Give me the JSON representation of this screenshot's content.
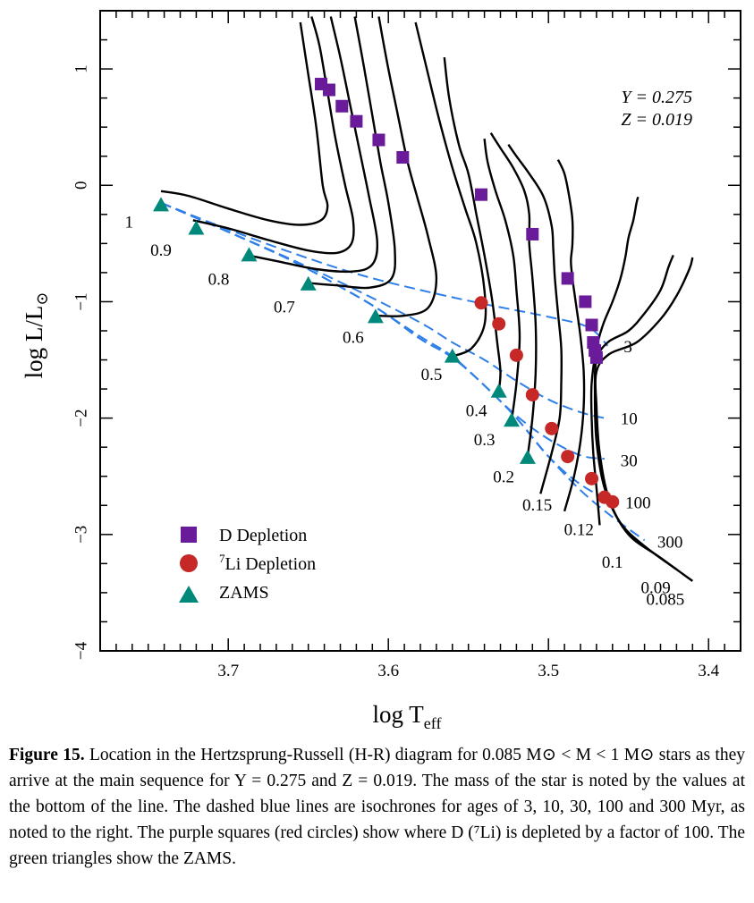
{
  "chart_data": {
    "type": "line",
    "xlabel": "log T",
    "xlabel_sub": "eff",
    "ylabel": "log L/L",
    "ylabel_sym": "⊙",
    "xlim": [
      3.78,
      3.38
    ],
    "ylim": [
      -4,
      1.5
    ],
    "x_ticks": [
      {
        "value": 3.7,
        "label": "3.7"
      },
      {
        "value": 3.6,
        "label": "3.6"
      },
      {
        "value": 3.5,
        "label": "3.5"
      },
      {
        "value": 3.4,
        "label": "3.4"
      }
    ],
    "y_ticks": [
      {
        "value": 1,
        "label": "1"
      },
      {
        "value": 0,
        "label": "0"
      },
      {
        "value": -1,
        "label": "−1"
      },
      {
        "value": -2,
        "label": "−2"
      },
      {
        "value": -3,
        "label": "−3"
      },
      {
        "value": -4,
        "label": "−4"
      }
    ],
    "annotations": [
      "Y = 0.275",
      "Z = 0.019"
    ],
    "legend": {
      "placement": "bottom-left",
      "entries": [
        {
          "label": "D Depletion",
          "marker": "square",
          "color": "#6a1b9a"
        },
        {
          "label": "Li Depletion",
          "sup": "7",
          "marker": "circle",
          "color": "#c62828"
        },
        {
          "label": "ZAMS",
          "marker": "triangle",
          "color": "#00897b"
        }
      ]
    },
    "tracks": [
      {
        "mass": "1",
        "points": [
          [
            3.742,
            -0.05
          ],
          [
            3.725,
            -0.09
          ],
          [
            3.7,
            -0.2
          ],
          [
            3.675,
            -0.3
          ],
          [
            3.655,
            -0.34
          ],
          [
            3.642,
            -0.3
          ],
          [
            3.638,
            -0.18
          ],
          [
            3.641,
            0.0
          ],
          [
            3.645,
            0.5
          ],
          [
            3.65,
            0.95
          ],
          [
            3.655,
            1.4
          ]
        ],
        "label_at": [
          3.762,
          -0.31
        ]
      },
      {
        "mass": "0.9",
        "points": [
          [
            3.722,
            -0.3
          ],
          [
            3.7,
            -0.37
          ],
          [
            3.675,
            -0.47
          ],
          [
            3.65,
            -0.56
          ],
          [
            3.632,
            -0.58
          ],
          [
            3.623,
            -0.5
          ],
          [
            3.622,
            -0.3
          ],
          [
            3.627,
            0.0
          ],
          [
            3.633,
            0.4
          ],
          [
            3.638,
            0.8
          ],
          [
            3.643,
            1.2
          ],
          [
            3.648,
            1.45
          ]
        ],
        "label_at": [
          3.742,
          -0.55
        ]
      },
      {
        "mass": "0.8",
        "points": [
          [
            3.688,
            -0.6
          ],
          [
            3.67,
            -0.65
          ],
          [
            3.645,
            -0.72
          ],
          [
            3.622,
            -0.74
          ],
          [
            3.61,
            -0.68
          ],
          [
            3.607,
            -0.48
          ],
          [
            3.612,
            -0.1
          ],
          [
            3.618,
            0.3
          ],
          [
            3.624,
            0.7
          ],
          [
            3.63,
            1.1
          ],
          [
            3.636,
            1.45
          ]
        ],
        "label_at": [
          3.706,
          -0.8
        ]
      },
      {
        "mass": "0.7",
        "points": [
          [
            3.65,
            -0.84
          ],
          [
            3.632,
            -0.86
          ],
          [
            3.612,
            -0.88
          ],
          [
            3.598,
            -0.8
          ],
          [
            3.596,
            -0.55
          ],
          [
            3.6,
            -0.15
          ],
          [
            3.605,
            0.2
          ],
          [
            3.61,
            0.6
          ],
          [
            3.615,
            1.0
          ],
          [
            3.621,
            1.45
          ]
        ],
        "label_at": [
          3.665,
          -1.04
        ]
      },
      {
        "mass": "0.6",
        "points": [
          [
            3.608,
            -1.12
          ],
          [
            3.59,
            -1.12
          ],
          [
            3.575,
            -1.05
          ],
          [
            3.57,
            -0.8
          ],
          [
            3.575,
            -0.45
          ],
          [
            3.582,
            -0.1
          ],
          [
            3.588,
            0.2
          ],
          [
            3.594,
            0.6
          ],
          [
            3.6,
            1.0
          ],
          [
            3.606,
            1.45
          ]
        ],
        "label_at": [
          3.622,
          -1.3
        ]
      },
      {
        "mass": "0.5",
        "points": [
          [
            3.56,
            -1.47
          ],
          [
            3.548,
            -1.4
          ],
          [
            3.54,
            -1.2
          ],
          [
            3.54,
            -0.9
          ],
          [
            3.545,
            -0.5
          ],
          [
            3.552,
            -0.2
          ],
          [
            3.56,
            0.15
          ],
          [
            3.568,
            0.55
          ],
          [
            3.576,
            1.0
          ],
          [
            3.583,
            1.4
          ]
        ],
        "label_at": [
          3.573,
          -1.62
        ]
      },
      {
        "mass": "0.4",
        "points": [
          [
            3.531,
            -1.77
          ],
          [
            3.53,
            -1.6
          ],
          [
            3.532,
            -1.35
          ],
          [
            3.535,
            -1.0
          ],
          [
            3.54,
            -0.6
          ],
          [
            3.545,
            -0.25
          ],
          [
            3.55,
            0.1
          ],
          [
            3.556,
            0.35
          ],
          [
            3.562,
            0.75
          ],
          [
            3.565,
            1.1
          ]
        ],
        "label_at": [
          3.545,
          -1.93
        ]
      },
      {
        "mass": "0.3",
        "points": [
          [
            3.523,
            -2.02
          ],
          [
            3.52,
            -1.7
          ],
          [
            3.518,
            -1.3
          ],
          [
            3.52,
            -0.9
          ],
          [
            3.522,
            -0.6
          ],
          [
            3.527,
            -0.3
          ],
          [
            3.533,
            -0.05
          ],
          [
            3.538,
            0.2
          ],
          [
            3.54,
            0.4
          ]
        ],
        "label_at": [
          3.54,
          -2.18
        ]
      },
      {
        "mass": "0.2",
        "points": [
          [
            3.513,
            -2.33
          ],
          [
            3.51,
            -2.0
          ],
          [
            3.508,
            -1.6
          ],
          [
            3.508,
            -1.2
          ],
          [
            3.51,
            -0.8
          ],
          [
            3.512,
            -0.5
          ],
          [
            3.512,
            -0.25
          ],
          [
            3.515,
            -0.05
          ],
          [
            3.522,
            0.15
          ],
          [
            3.53,
            0.32
          ],
          [
            3.536,
            0.45
          ]
        ],
        "label_at": [
          3.528,
          -2.5
        ]
      },
      {
        "mass": "0.15",
        "points": [
          [
            3.505,
            -2.65
          ],
          [
            3.498,
            -2.3
          ],
          [
            3.493,
            -2.0
          ],
          [
            3.492,
            -1.7
          ],
          [
            3.492,
            -1.4
          ],
          [
            3.494,
            -1.1
          ],
          [
            3.496,
            -0.8
          ],
          [
            3.497,
            -0.55
          ],
          [
            3.498,
            -0.35
          ],
          [
            3.503,
            -0.1
          ],
          [
            3.512,
            0.1
          ],
          [
            3.52,
            0.25
          ],
          [
            3.525,
            0.35
          ]
        ],
        "label_at": [
          3.507,
          -2.74
        ]
      },
      {
        "mass": "0.12",
        "points": [
          [
            3.49,
            -2.8
          ],
          [
            3.484,
            -2.5
          ],
          [
            3.48,
            -2.2
          ],
          [
            3.478,
            -1.9
          ],
          [
            3.478,
            -1.6
          ],
          [
            3.48,
            -1.3
          ],
          [
            3.483,
            -1.0
          ],
          [
            3.485,
            -0.8
          ],
          [
            3.486,
            -0.65
          ],
          [
            3.485,
            -0.5
          ],
          [
            3.485,
            -0.3
          ],
          [
            3.487,
            -0.1
          ],
          [
            3.49,
            0.1
          ],
          [
            3.494,
            0.22
          ]
        ],
        "label_at": [
          3.481,
          -2.95
        ]
      },
      {
        "mass": "0.1",
        "points": [
          [
            3.468,
            -2.92
          ],
          [
            3.47,
            -2.6
          ],
          [
            3.472,
            -2.3
          ],
          [
            3.473,
            -2.0
          ],
          [
            3.473,
            -1.7
          ],
          [
            3.47,
            -1.4
          ],
          [
            3.466,
            -1.2
          ],
          [
            3.46,
            -1.0
          ],
          [
            3.455,
            -0.8
          ],
          [
            3.452,
            -0.62
          ],
          [
            3.45,
            -0.45
          ],
          [
            3.447,
            -0.3
          ],
          [
            3.445,
            -0.15
          ],
          [
            3.444,
            -0.1
          ]
        ],
        "label_at": [
          3.46,
          -3.23
        ]
      },
      {
        "mass": "0.09",
        "points": [
          [
            3.42,
            -3.3
          ],
          [
            3.44,
            -3.1
          ],
          [
            3.455,
            -2.9
          ],
          [
            3.465,
            -2.6
          ],
          [
            3.47,
            -2.2
          ],
          [
            3.471,
            -1.8
          ],
          [
            3.47,
            -1.5
          ],
          [
            3.463,
            -1.35
          ],
          [
            3.45,
            -1.25
          ],
          [
            3.44,
            -1.1
          ],
          [
            3.43,
            -0.9
          ],
          [
            3.425,
            -0.7
          ],
          [
            3.422,
            -0.6
          ]
        ],
        "label_at": [
          3.433,
          -3.45
        ]
      },
      {
        "mass": "0.085",
        "points": [
          [
            3.41,
            -3.4
          ],
          [
            3.43,
            -3.2
          ],
          [
            3.45,
            -3.0
          ],
          [
            3.462,
            -2.7
          ],
          [
            3.468,
            -2.3
          ],
          [
            3.47,
            -1.9
          ],
          [
            3.47,
            -1.6
          ],
          [
            3.462,
            -1.45
          ],
          [
            3.445,
            -1.35
          ],
          [
            3.43,
            -1.15
          ],
          [
            3.42,
            -0.95
          ],
          [
            3.412,
            -0.72
          ],
          [
            3.41,
            -0.62
          ]
        ],
        "label_at": [
          3.427,
          -3.55
        ]
      }
    ],
    "isochrones": [
      {
        "age": "3",
        "points": [
          [
            3.742,
            -0.15
          ],
          [
            3.7,
            -0.38
          ],
          [
            3.66,
            -0.58
          ],
          [
            3.62,
            -0.76
          ],
          [
            3.58,
            -0.9
          ],
          [
            3.54,
            -1.02
          ],
          [
            3.5,
            -1.13
          ],
          [
            3.475,
            -1.22
          ],
          [
            3.463,
            -1.38
          ]
        ],
        "label_at": [
          3.453,
          -1.38
        ]
      },
      {
        "age": "10",
        "points": [
          [
            3.742,
            -0.15
          ],
          [
            3.7,
            -0.4
          ],
          [
            3.66,
            -0.64
          ],
          [
            3.62,
            -0.9
          ],
          [
            3.58,
            -1.18
          ],
          [
            3.56,
            -1.35
          ],
          [
            3.54,
            -1.5
          ],
          [
            3.52,
            -1.68
          ],
          [
            3.5,
            -1.84
          ],
          [
            3.48,
            -1.95
          ],
          [
            3.465,
            -2.0
          ]
        ],
        "label_at": [
          3.455,
          -2.0
        ]
      },
      {
        "age": "30",
        "points": [
          [
            3.742,
            -0.15
          ],
          [
            3.7,
            -0.4
          ],
          [
            3.66,
            -0.65
          ],
          [
            3.62,
            -0.95
          ],
          [
            3.6,
            -1.12
          ],
          [
            3.58,
            -1.3
          ],
          [
            3.56,
            -1.47
          ],
          [
            3.54,
            -1.72
          ],
          [
            3.52,
            -1.98
          ],
          [
            3.5,
            -2.18
          ],
          [
            3.48,
            -2.32
          ],
          [
            3.465,
            -2.35
          ]
        ],
        "label_at": [
          3.455,
          -2.36
        ]
      },
      {
        "age": "100",
        "points": [
          [
            3.742,
            -0.15
          ],
          [
            3.7,
            -0.4
          ],
          [
            3.66,
            -0.65
          ],
          [
            3.62,
            -0.95
          ],
          [
            3.6,
            -1.12
          ],
          [
            3.58,
            -1.32
          ],
          [
            3.56,
            -1.48
          ],
          [
            3.54,
            -1.72
          ],
          [
            3.52,
            -2.0
          ],
          [
            3.5,
            -2.33
          ],
          [
            3.48,
            -2.57
          ],
          [
            3.46,
            -2.72
          ]
        ],
        "label_at": [
          3.452,
          -2.72
        ]
      },
      {
        "age": "300",
        "points": [
          [
            3.742,
            -0.15
          ],
          [
            3.7,
            -0.4
          ],
          [
            3.66,
            -0.65
          ],
          [
            3.62,
            -0.95
          ],
          [
            3.6,
            -1.12
          ],
          [
            3.58,
            -1.32
          ],
          [
            3.56,
            -1.48
          ],
          [
            3.54,
            -1.72
          ],
          [
            3.52,
            -2.0
          ],
          [
            3.5,
            -2.33
          ],
          [
            3.48,
            -2.62
          ],
          [
            3.46,
            -2.85
          ],
          [
            3.44,
            -3.05
          ]
        ],
        "label_at": [
          3.432,
          -3.06
        ]
      }
    ],
    "d_depletion": [
      [
        3.642,
        0.87
      ],
      [
        3.637,
        0.82
      ],
      [
        3.629,
        0.68
      ],
      [
        3.62,
        0.55
      ],
      [
        3.606,
        0.39
      ],
      [
        3.591,
        0.24
      ],
      [
        3.542,
        -0.08
      ],
      [
        3.51,
        -0.42
      ],
      [
        3.488,
        -0.8
      ],
      [
        3.477,
        -1.0
      ],
      [
        3.473,
        -1.2
      ],
      [
        3.472,
        -1.35
      ],
      [
        3.471,
        -1.42
      ],
      [
        3.47,
        -1.48
      ]
    ],
    "li_depletion": [
      [
        3.542,
        -1.01
      ],
      [
        3.531,
        -1.19
      ],
      [
        3.52,
        -1.46
      ],
      [
        3.51,
        -1.8
      ],
      [
        3.498,
        -2.09
      ],
      [
        3.488,
        -2.33
      ],
      [
        3.473,
        -2.52
      ],
      [
        3.465,
        -2.68
      ],
      [
        3.46,
        -2.72
      ]
    ],
    "zams": [
      [
        3.742,
        -0.17
      ],
      [
        3.72,
        -0.37
      ],
      [
        3.687,
        -0.6
      ],
      [
        3.65,
        -0.85
      ],
      [
        3.608,
        -1.13
      ],
      [
        3.56,
        -1.47
      ],
      [
        3.531,
        -1.77
      ],
      [
        3.523,
        -2.02
      ],
      [
        3.513,
        -2.34
      ]
    ]
  },
  "caption": {
    "label": "Figure 15.",
    "text": "Location in the Hertzsprung-Russell (H-R) diagram for 0.085 M⊙ < M < 1 M⊙ stars as they arrive at the main sequence for Y = 0.275 and Z = 0.019. The mass of the star is noted by the values at the bottom of the line. The dashed blue lines are isochrones for ages of 3, 10, 30, 100 and 300 Myr, as noted to the right. The purple squares (red circles) show where D (⁷Li) is depleted by a factor of 100. The green triangles show the ZAMS."
  }
}
